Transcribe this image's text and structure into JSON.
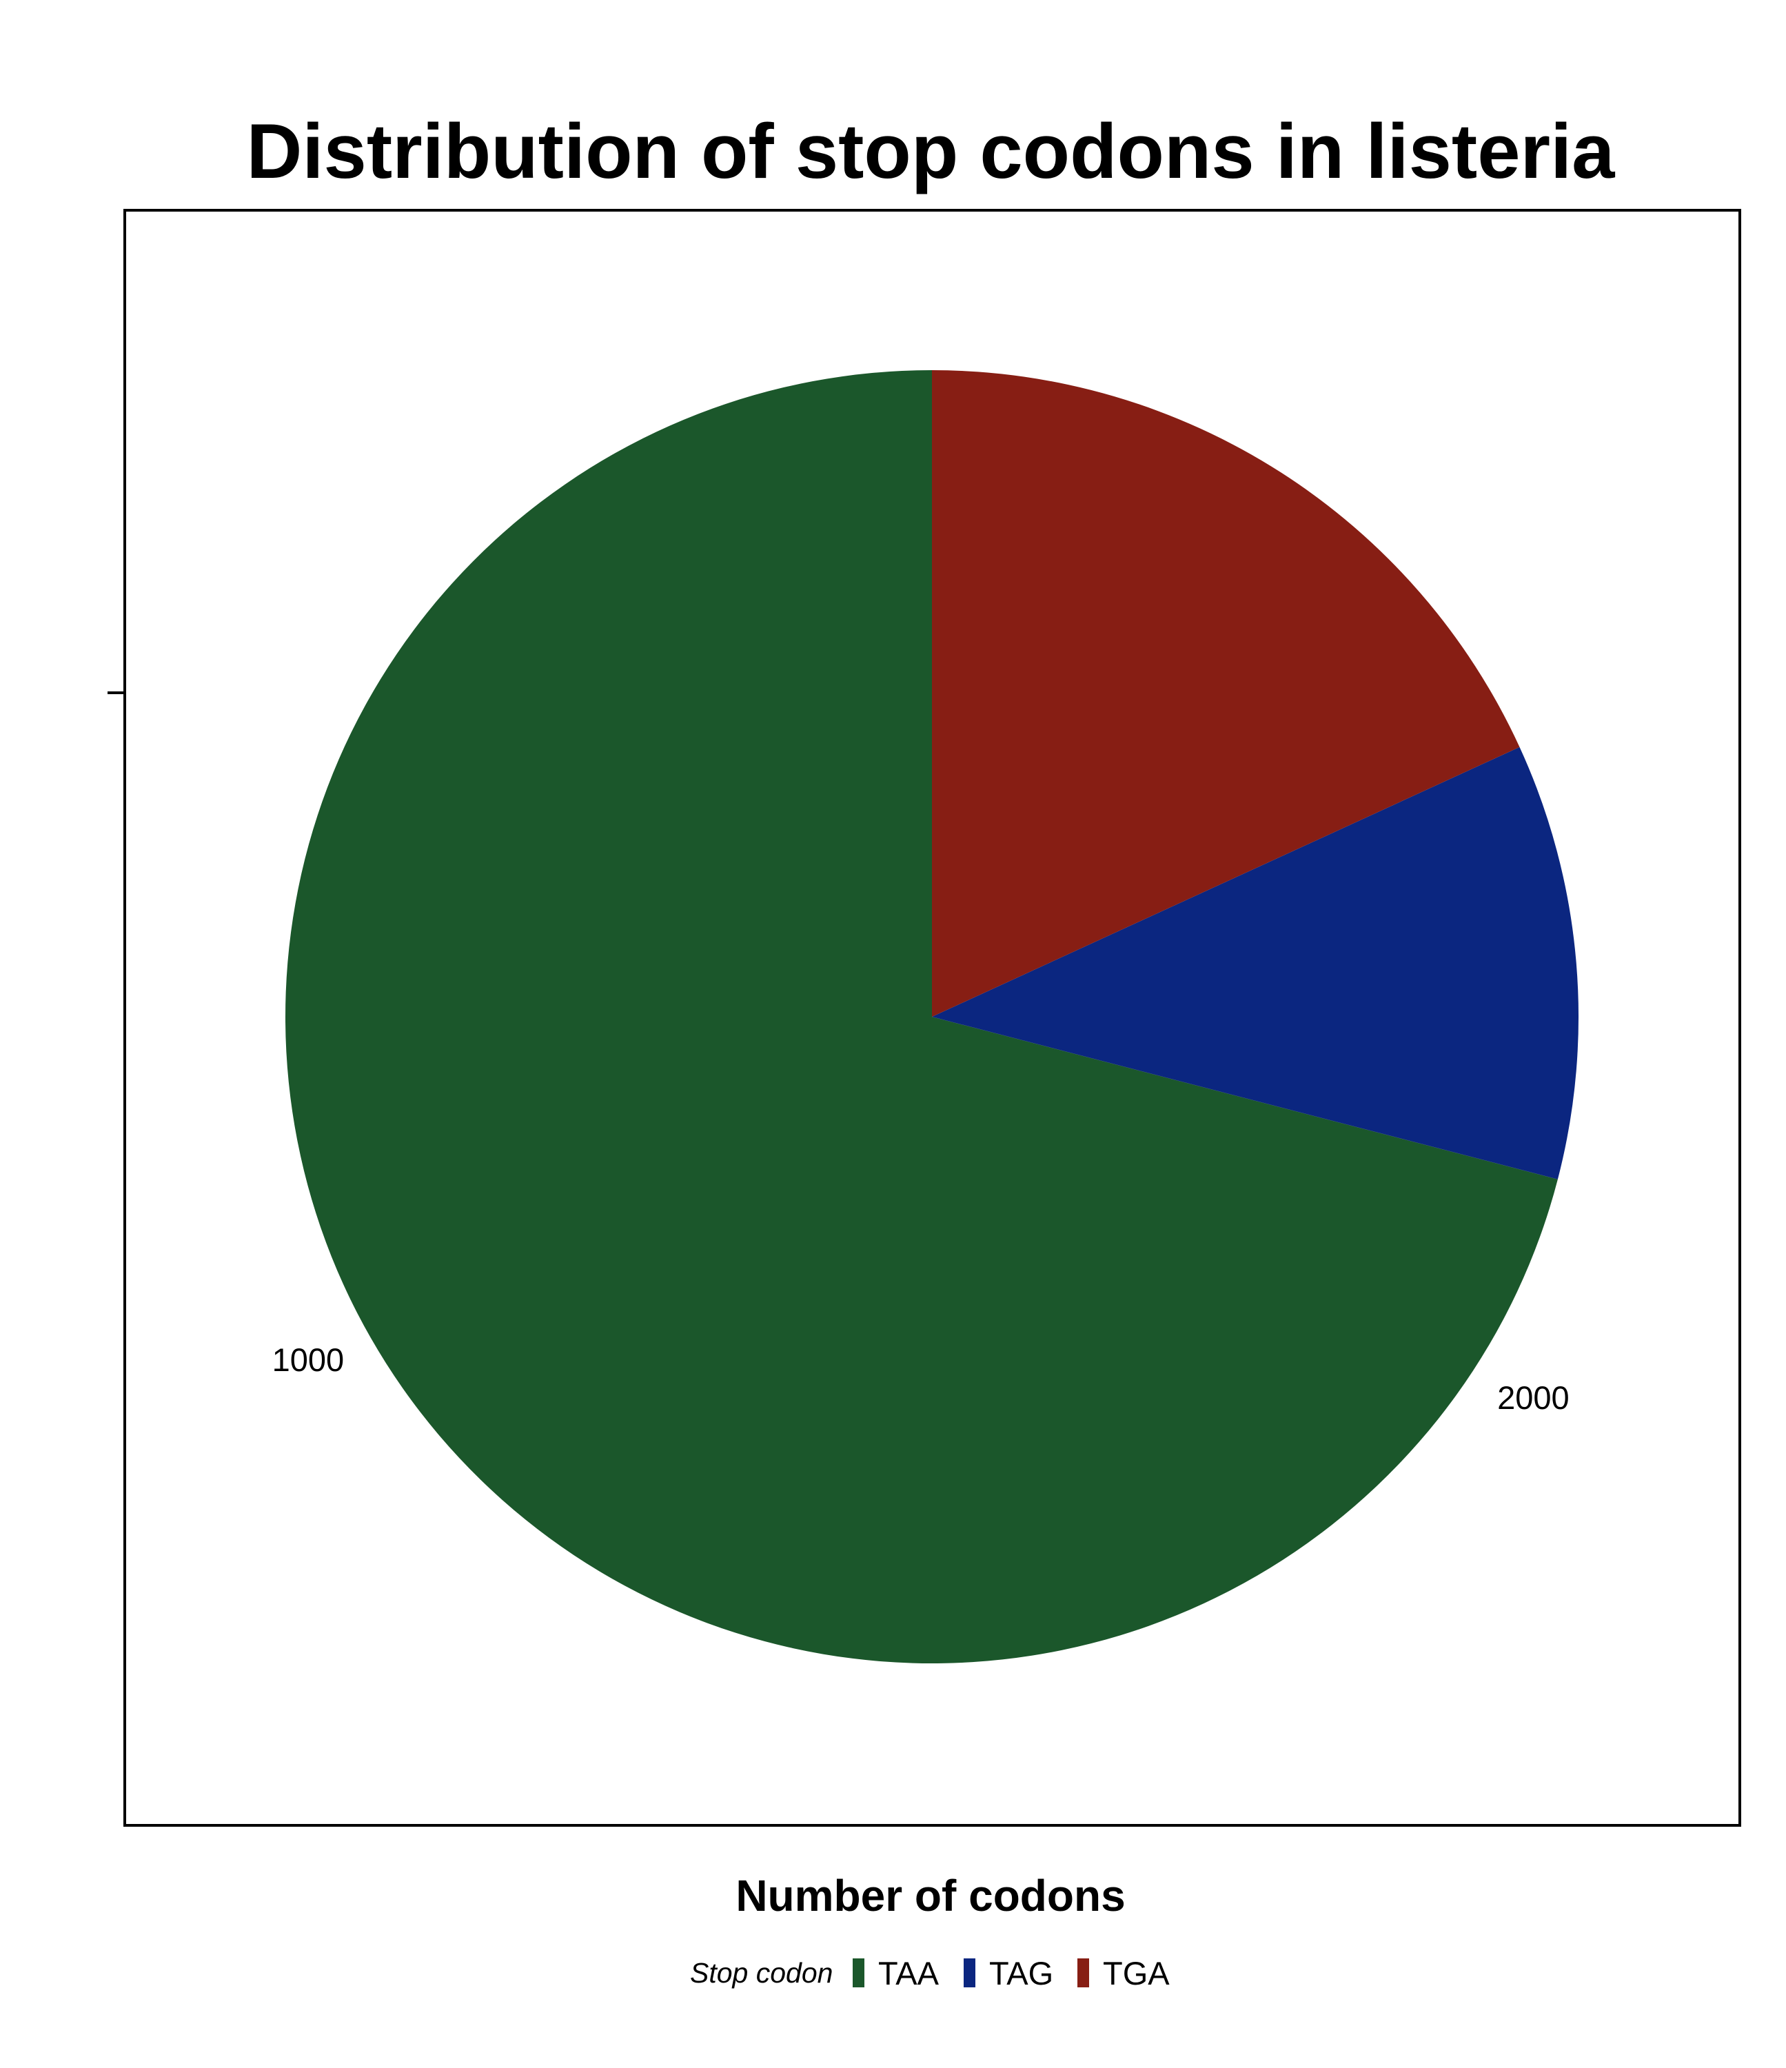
{
  "chart_data": {
    "type": "pie",
    "title": "Distribution of stop codons in listeria",
    "xlabel": "Number of codons",
    "ylabel": "",
    "categories": [
      "TAA",
      "TAG",
      "TGA"
    ],
    "values": [
      2150,
      330,
      550
    ],
    "colors": [
      "#1b572b",
      "#0b2680",
      "#871e14"
    ],
    "start_angle_deg": 0,
    "direction": "counterclockwise",
    "radial_axis": {
      "ticks": [
        1000,
        2000
      ],
      "tick_labels": [
        "1000",
        "2000"
      ],
      "max": 3030
    },
    "legend": {
      "title": "Stop codon",
      "position": "bottom",
      "items": [
        "TAA",
        "TAG",
        "TGA"
      ]
    },
    "grid": false
  }
}
